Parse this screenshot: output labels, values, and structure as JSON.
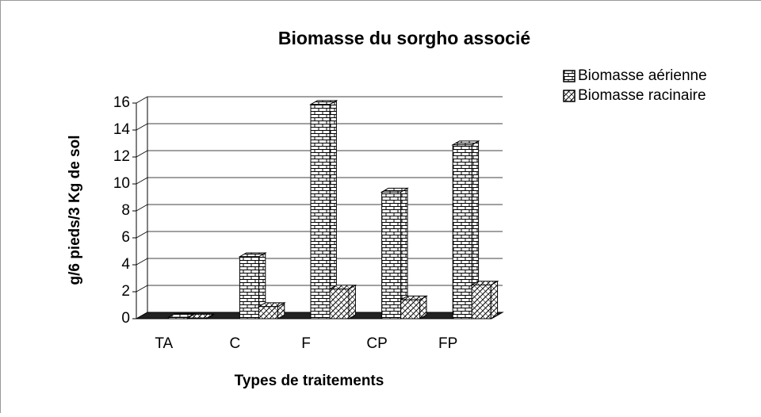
{
  "chart_data": {
    "type": "bar3d",
    "title": "Biomasse du sorgho associé",
    "xlabel": "Types de traitements",
    "ylabel": "g/6 pieds/3 Kg de sol",
    "categories": [
      "TA",
      "C",
      "F",
      "CP",
      "FP"
    ],
    "series": [
      {
        "name": "Biomasse aérienne",
        "values": [
          0.1,
          4.6,
          15.9,
          9.4,
          12.9
        ]
      },
      {
        "name": "Biomasse racinaire",
        "values": [
          0.05,
          0.9,
          2.2,
          1.4,
          2.5
        ]
      }
    ],
    "ylim": [
      0,
      16
    ],
    "yticks": [
      0,
      2,
      4,
      6,
      8,
      10,
      12,
      14,
      16
    ],
    "grid": true
  }
}
